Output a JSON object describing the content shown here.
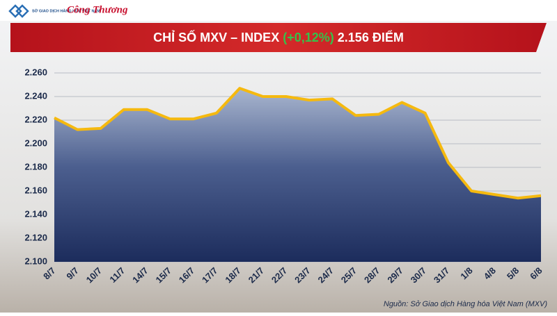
{
  "header": {
    "logo_left": "SỞ GIAO DỊCH HÀNG HÓA VIỆT NAM",
    "logo_right": "Công Thương"
  },
  "chart_data": {
    "type": "area",
    "title": "CHỈ SỐ MXV – INDEX",
    "title_change": "(+0,12%)",
    "title_value": "2.156 ĐIỂM",
    "categories": [
      "8/7",
      "9/7",
      "10/7",
      "11/7",
      "14/7",
      "15/7",
      "16/7",
      "17/7",
      "18/7",
      "21/7",
      "22/7",
      "23/7",
      "24/7",
      "25/7",
      "28/7",
      "29/7",
      "30/7",
      "31/7",
      "1/8",
      "4/8",
      "5/8",
      "6/8"
    ],
    "values": [
      2222,
      2212,
      2213,
      2229,
      2229,
      2221,
      2221,
      2226,
      2247,
      2240,
      2240,
      2237,
      2238,
      2224,
      2225,
      2235,
      2226,
      2184,
      2160,
      2157,
      2154,
      2156
    ],
    "color": "#f5b90f",
    "ylim": [
      2100,
      2260
    ],
    "yticks": [
      {
        "value": 2100,
        "label": "2.100"
      },
      {
        "value": 2120,
        "label": "2.120"
      },
      {
        "value": 2140,
        "label": "2.140"
      },
      {
        "value": 2160,
        "label": "2.160"
      },
      {
        "value": 2180,
        "label": "2.180"
      },
      {
        "value": 2200,
        "label": "2.200"
      },
      {
        "value": 2220,
        "label": "2.220"
      },
      {
        "value": 2240,
        "label": "2.240"
      },
      {
        "value": 2260,
        "label": "2.260"
      }
    ],
    "grid": true,
    "source": "Nguồn: Sở Giao dịch Hàng hóa Việt Nam (MXV)"
  }
}
